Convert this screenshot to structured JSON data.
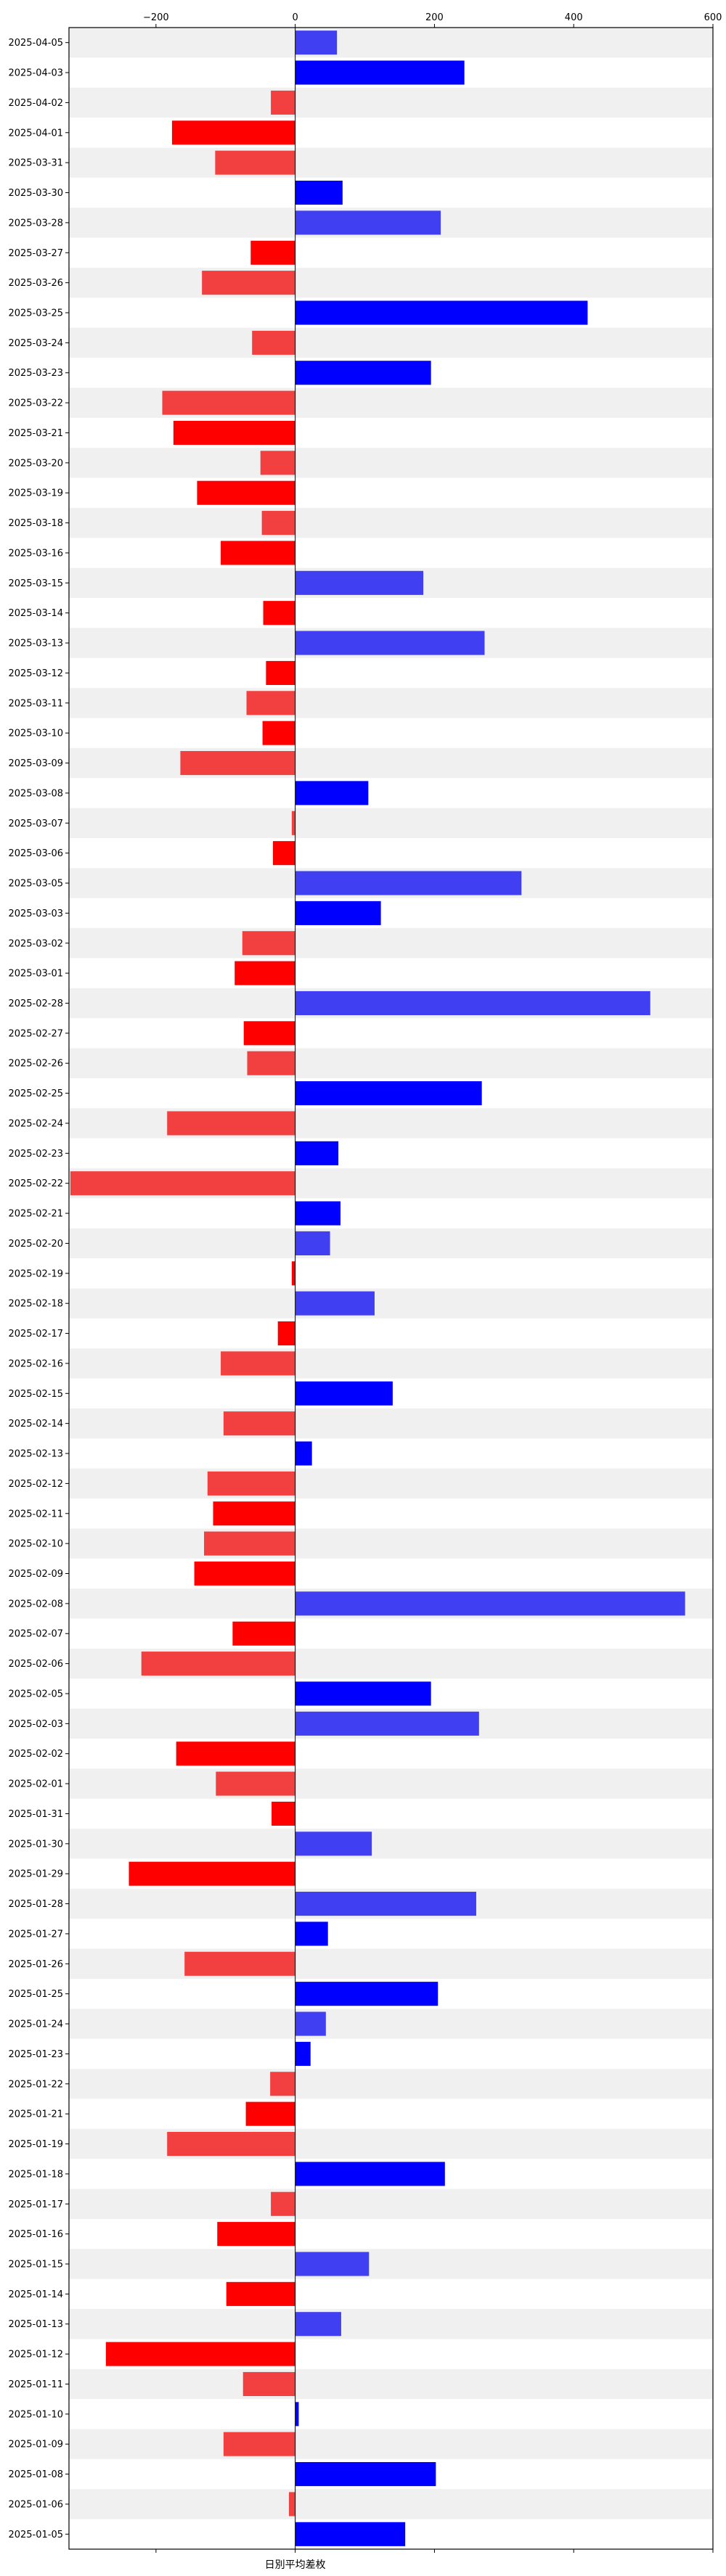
{
  "chart_data": {
    "type": "bar",
    "orientation": "horizontal",
    "title": "",
    "xlabel": "日別平均差枚",
    "ylabel": "",
    "xlim": [
      -325,
      600
    ],
    "xticks": [
      -200,
      0,
      200,
      400,
      600
    ],
    "xtick_labels": [
      "−200",
      "0",
      "200",
      "400",
      "600"
    ],
    "grid": false,
    "row_banding": true,
    "colors": {
      "positive": "#0000ff",
      "positive_alt": "#4040f2",
      "negative": "#ff0000",
      "negative_alt": "#f24040",
      "band": "#f0f0f0",
      "axis": "#000000"
    },
    "categories": [
      "2025-04-05",
      "2025-04-03",
      "2025-04-02",
      "2025-04-01",
      "2025-03-31",
      "2025-03-30",
      "2025-03-28",
      "2025-03-27",
      "2025-03-26",
      "2025-03-25",
      "2025-03-24",
      "2025-03-23",
      "2025-03-22",
      "2025-03-21",
      "2025-03-20",
      "2025-03-19",
      "2025-03-18",
      "2025-03-16",
      "2025-03-15",
      "2025-03-14",
      "2025-03-13",
      "2025-03-12",
      "2025-03-11",
      "2025-03-10",
      "2025-03-09",
      "2025-03-08",
      "2025-03-07",
      "2025-03-06",
      "2025-03-05",
      "2025-03-03",
      "2025-03-02",
      "2025-03-01",
      "2025-02-28",
      "2025-02-27",
      "2025-02-26",
      "2025-02-25",
      "2025-02-24",
      "2025-02-23",
      "2025-02-22",
      "2025-02-21",
      "2025-02-20",
      "2025-02-19",
      "2025-02-18",
      "2025-02-17",
      "2025-02-16",
      "2025-02-15",
      "2025-02-14",
      "2025-02-13",
      "2025-02-12",
      "2025-02-11",
      "2025-02-10",
      "2025-02-09",
      "2025-02-08",
      "2025-02-07",
      "2025-02-06",
      "2025-02-05",
      "2025-02-03",
      "2025-02-02",
      "2025-02-01",
      "2025-01-31",
      "2025-01-30",
      "2025-01-29",
      "2025-01-28",
      "2025-01-27",
      "2025-01-26",
      "2025-01-25",
      "2025-01-24",
      "2025-01-23",
      "2025-01-22",
      "2025-01-21",
      "2025-01-19",
      "2025-01-18",
      "2025-01-17",
      "2025-01-16",
      "2025-01-15",
      "2025-01-14",
      "2025-01-13",
      "2025-01-12",
      "2025-01-11",
      "2025-01-10",
      "2025-01-09",
      "2025-01-08",
      "2025-01-06",
      "2025-01-05"
    ],
    "values": [
      60,
      243,
      -35,
      -177,
      -115,
      68,
      209,
      -64,
      -134,
      420,
      -62,
      195,
      -191,
      -175,
      -50,
      -141,
      -48,
      -107,
      184,
      -46,
      272,
      -42,
      -70,
      -47,
      -165,
      105,
      -5,
      -32,
      325,
      123,
      -76,
      -87,
      510,
      -74,
      -69,
      268,
      -184,
      62,
      -323,
      65,
      50,
      -5,
      114,
      -25,
      -107,
      140,
      -103,
      24,
      -126,
      -118,
      -131,
      -145,
      560,
      -90,
      -221,
      195,
      264,
      -171,
      -114,
      -34,
      110,
      -239,
      260,
      47,
      -159,
      205,
      44,
      22,
      -36,
      -71,
      -184,
      215,
      -35,
      -112,
      106,
      -99,
      66,
      -272,
      -75,
      5,
      -103,
      202,
      -9,
      158
    ]
  }
}
